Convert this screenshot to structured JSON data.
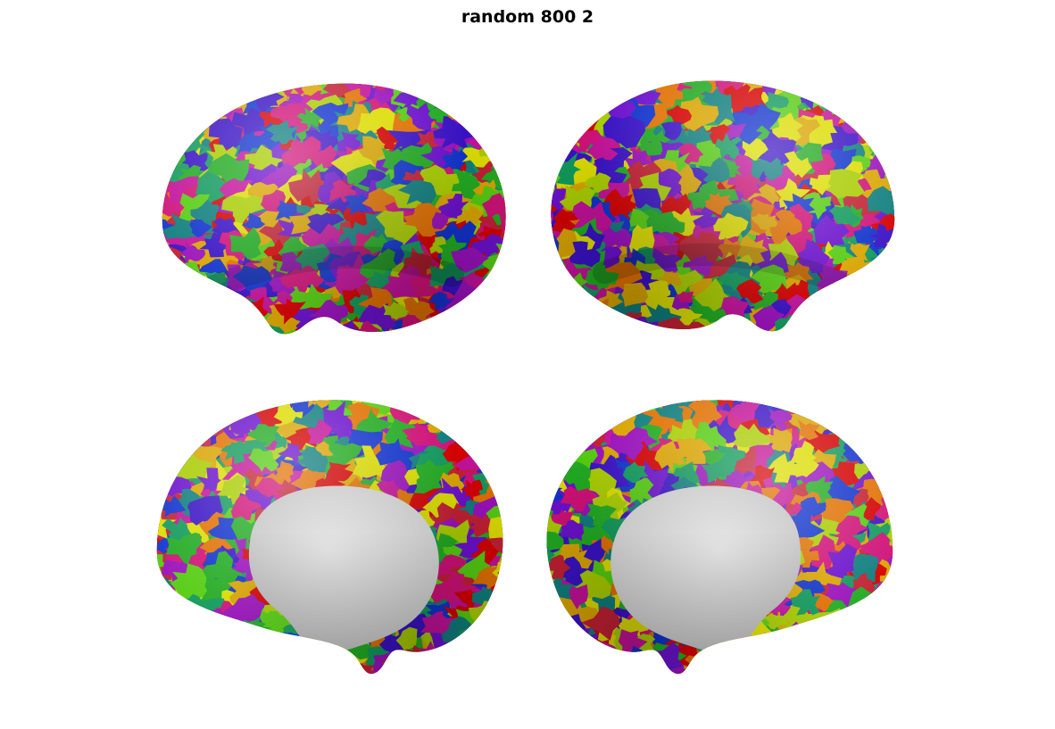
{
  "title": "random 800 2",
  "figure": {
    "background_color": "#ffffff",
    "parcellation_name": "random",
    "n_parcels": 800,
    "variant": 2,
    "medial_wall_color_center": "#e6e6e6",
    "medial_wall_color_edge": "#c3c3c3",
    "palette": [
      "#d40000",
      "#c22033",
      "#cf1177",
      "#e07000",
      "#d9a400",
      "#dcdc00",
      "#a8cc00",
      "#55cc11",
      "#22aa22",
      "#11995c",
      "#0f7d7d",
      "#1133cc",
      "#3912c4",
      "#6b11cc",
      "#9911bb",
      "#c21199"
    ],
    "views": [
      {
        "id": "left-lateral",
        "hemisphere": "left",
        "view": "lateral",
        "medial_wall_visible": false
      },
      {
        "id": "right-lateral",
        "hemisphere": "right",
        "view": "lateral",
        "medial_wall_visible": false
      },
      {
        "id": "left-medial",
        "hemisphere": "left",
        "view": "medial",
        "medial_wall_visible": true
      },
      {
        "id": "right-medial",
        "hemisphere": "right",
        "view": "medial",
        "medial_wall_visible": true
      }
    ]
  }
}
